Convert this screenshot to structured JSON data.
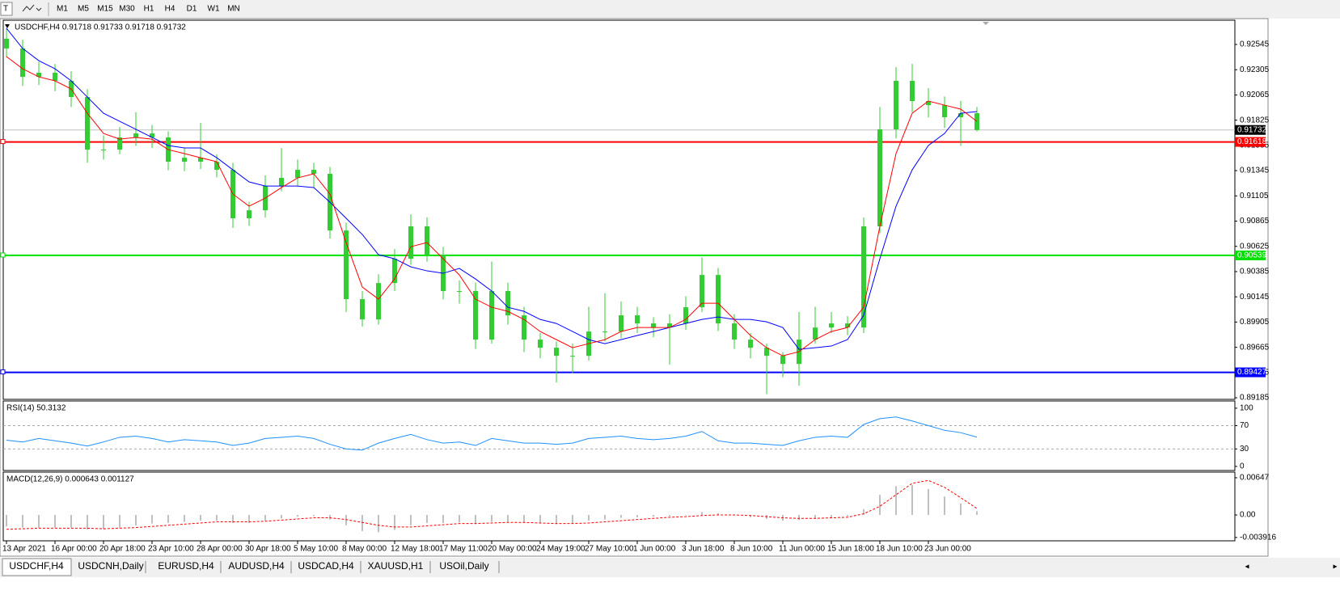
{
  "toolbar": {
    "timeframes": [
      "M1",
      "M5",
      "M15",
      "M30",
      "H1",
      "H4",
      "D1",
      "W1",
      "MN"
    ]
  },
  "tabs": [
    "USDCHF,H4",
    "USDCNH,Daily",
    "EURUSD,H4",
    "AUDUSD,H4",
    "USDCAD,H4",
    "XAUUSD,H1",
    "USOil,Daily"
  ],
  "chart_data": [
    {
      "type": "candlestick",
      "title": "USDCHF,H4  0.91718 0.91733 0.91718 0.91732",
      "candle_color": "#32cd32",
      "categories": [
        "13 Apr 2021",
        null,
        null,
        "16 Apr 00:00",
        null,
        null,
        "20 Apr 18:00",
        null,
        null,
        "23 Apr 10:00",
        null,
        null,
        "28 Apr 00:00",
        null,
        null,
        "30 Apr 18:00",
        null,
        null,
        "5 May 10:00",
        null,
        null,
        "8 May 00:00",
        null,
        null,
        "12 May 18:00",
        null,
        null,
        "17 May 11:00",
        null,
        null,
        "20 May 00:00",
        null,
        null,
        "24 May 19:00",
        null,
        null,
        "27 May 10:00",
        null,
        null,
        "1 Jun 00:00",
        null,
        null,
        "3 Jun 18:00",
        null,
        null,
        "8 Jun 10:00",
        null,
        null,
        "11 Jun 00:00",
        null,
        null,
        "15 Jun 18:00",
        null,
        null,
        "18 Jun 10:00",
        null,
        null,
        "23 Jun 00:00",
        null,
        null,
        null
      ],
      "open": [
        0.926,
        0.92507,
        0.92237,
        0.92276,
        0.92199,
        0.92045,
        0.91545,
        0.91545,
        0.91661,
        0.91699,
        0.91661,
        0.9143,
        0.91468,
        0.9143,
        0.91353,
        0.90892,
        0.90968,
        0.91199,
        0.91276,
        0.91353,
        0.91315,
        0.90776,
        0.90123,
        0.8993,
        0.90276,
        0.90507,
        0.90815,
        0.90546,
        0.902,
        0.902,
        0.89738,
        0.902,
        0.89969,
        0.89738,
        0.89661,
        0.89584,
        0.89584,
        0.89815,
        0.89815,
        0.89969,
        0.89892,
        0.89853,
        0.89892,
        0.90046,
        0.90353,
        0.89892,
        0.89738,
        0.89661,
        0.89584,
        0.89507,
        0.89738,
        0.89853,
        0.89892,
        0.89853,
        0.90815,
        0.91738,
        0.92199,
        0.92007,
        0.91968,
        0.91853,
        0.91891
      ],
      "high": [
        0.927,
        0.9259,
        0.9238,
        0.9236,
        0.9229,
        0.9212,
        0.9168,
        0.9176,
        0.919,
        0.9178,
        0.9172,
        0.9156,
        0.918,
        0.915,
        0.9142,
        0.9105,
        0.913,
        0.9156,
        0.9145,
        0.9142,
        0.9138,
        0.9085,
        0.902,
        0.9036,
        0.906,
        0.9093,
        0.909,
        0.9062,
        0.903,
        0.9028,
        0.9048,
        0.9028,
        0.9005,
        0.898,
        0.8972,
        0.897,
        0.9005,
        0.9018,
        0.901,
        0.9005,
        0.8995,
        0.8998,
        0.9015,
        0.9052,
        0.9042,
        0.8998,
        0.898,
        0.897,
        0.8962,
        0.9,
        0.9005,
        0.9,
        0.8996,
        0.909,
        0.9195,
        0.9233,
        0.9236,
        0.9213,
        0.9205,
        0.9201,
        0.9195
      ],
      "low": [
        0.9242,
        0.9215,
        0.9216,
        0.921,
        0.9195,
        0.9142,
        0.9145,
        0.915,
        0.9158,
        0.9156,
        0.9135,
        0.9134,
        0.9136,
        0.9128,
        0.908,
        0.9082,
        0.909,
        0.9115,
        0.912,
        0.9118,
        0.907,
        0.9,
        0.8986,
        0.8988,
        0.902,
        0.9045,
        0.9048,
        0.9012,
        0.9008,
        0.8965,
        0.897,
        0.8988,
        0.8962,
        0.8956,
        0.8933,
        0.8942,
        0.8954,
        0.8972,
        0.8975,
        0.898,
        0.8976,
        0.895,
        0.8983,
        0.9,
        0.8982,
        0.8965,
        0.8956,
        0.8922,
        0.8938,
        0.893,
        0.897,
        0.898,
        0.8978,
        0.898,
        0.9075,
        0.9165,
        0.919,
        0.9185,
        0.9175,
        0.9158,
        0.91718
      ],
      "close": [
        0.92507,
        0.92237,
        0.92276,
        0.92199,
        0.92045,
        0.91545,
        0.91545,
        0.91661,
        0.91699,
        0.91661,
        0.9143,
        0.91468,
        0.9143,
        0.91353,
        0.90892,
        0.90968,
        0.91199,
        0.91276,
        0.91353,
        0.91315,
        0.90776,
        0.90123,
        0.8993,
        0.90276,
        0.90507,
        0.90815,
        0.90546,
        0.902,
        0.902,
        0.89738,
        0.902,
        0.89969,
        0.89738,
        0.89661,
        0.89584,
        0.89584,
        0.89815,
        0.89815,
        0.89969,
        0.89892,
        0.89853,
        0.89892,
        0.90046,
        0.90353,
        0.89892,
        0.89738,
        0.89661,
        0.89584,
        0.89507,
        0.89738,
        0.89853,
        0.89892,
        0.89853,
        0.90815,
        0.91738,
        0.92199,
        0.92007,
        0.91968,
        0.91853,
        0.91891,
        0.91732
      ],
      "lines": [
        {
          "color": "#0000ff",
          "values": [
            0.92699,
            0.92507,
            0.92391,
            0.92314,
            0.92199,
            0.92045,
            0.91891,
            0.91814,
            0.91738,
            0.91661,
            0.91584,
            0.91561,
            0.91561,
            0.91468,
            0.91353,
            0.91238,
            0.91199,
            0.91199,
            0.91199,
            0.91184,
            0.91045,
            0.90892,
            0.90738,
            0.90546,
            0.90507,
            0.9043,
            0.90392,
            0.90369,
            0.90415,
            0.90315,
            0.902,
            0.90046,
            0.90007,
            0.8993,
            0.89892,
            0.89815,
            0.89738,
            0.897,
            0.89738,
            0.89777,
            0.89815,
            0.89853,
            0.89892,
            0.8993,
            0.89953,
            0.8993,
            0.8993,
            0.89907,
            0.89853,
            0.89646,
            0.89661,
            0.89677,
            0.89738,
            0.89969,
            0.90507,
            0.91007,
            0.91353,
            0.91584,
            0.91699,
            0.91891,
            0.91907
          ]
        },
        {
          "color": "#ff0000",
          "values": [
            0.9243,
            0.92314,
            0.92237,
            0.92199,
            0.92122,
            0.91891,
            0.91699,
            0.91645,
            0.91661,
            0.91645,
            0.91545,
            0.91507,
            0.91468,
            0.9143,
            0.91122,
            0.91007,
            0.91084,
            0.91184,
            0.91276,
            0.91315,
            0.91122,
            0.90661,
            0.90238,
            0.90123,
            0.90315,
            0.90622,
            0.90661,
            0.90507,
            0.90353,
            0.90123,
            0.90046,
            0.90007,
            0.8993,
            0.89815,
            0.89738,
            0.89661,
            0.897,
            0.89738,
            0.89815,
            0.89853,
            0.89853,
            0.89853,
            0.8993,
            0.90084,
            0.90084,
            0.8993,
            0.89777,
            0.89661,
            0.89584,
            0.89623,
            0.89738,
            0.89815,
            0.89853,
            0.90046,
            0.90815,
            0.91507,
            0.91891,
            0.92007,
            0.91968,
            0.9193,
            0.91814
          ]
        }
      ],
      "levels": [
        {
          "value": 0.91618,
          "color": "#ff0000"
        },
        {
          "value": 0.90539,
          "color": "#00e000"
        },
        {
          "value": 0.89427,
          "color": "#0000ff"
        }
      ],
      "current_price": 0.91732,
      "ylim": [
        0.8917,
        0.92768
      ],
      "yticks": [
        0.92545,
        0.92305,
        0.92065,
        0.91825,
        0.91585,
        0.91345,
        0.91105,
        0.90865,
        0.90625,
        0.90385,
        0.90145,
        0.89905,
        0.89665,
        0.89425,
        0.89185
      ]
    },
    {
      "type": "line",
      "title": "RSI(14) 50.3132",
      "color": "#1e90ff",
      "values": [
        45,
        42,
        48,
        44,
        40,
        35,
        42,
        50,
        52,
        48,
        42,
        46,
        44,
        42,
        36,
        40,
        48,
        50,
        52,
        48,
        38,
        30,
        28,
        40,
        48,
        55,
        46,
        40,
        42,
        36,
        48,
        44,
        40,
        40,
        38,
        40,
        48,
        50,
        52,
        48,
        46,
        48,
        52,
        60,
        44,
        40,
        40,
        38,
        36,
        44,
        50,
        52,
        50,
        72,
        82,
        85,
        78,
        70,
        62,
        58,
        50.3132
      ],
      "level_lines": [
        30,
        70
      ],
      "ylim": [
        -7,
        111
      ],
      "yticks": [
        100,
        70,
        30,
        0
      ]
    },
    {
      "type": "macd",
      "title": "MACD(12,26,9) 0.000643 0.001127",
      "bar_color": "#c0c0c0",
      "signal_color": "#ff0000",
      "values": [
        -0.002,
        -0.0022,
        -0.0023,
        -0.0022,
        -0.0022,
        -0.0025,
        -0.0025,
        -0.0022,
        -0.0018,
        -0.0015,
        -0.0014,
        -0.0012,
        -0.001,
        -0.001,
        -0.0014,
        -0.0014,
        -0.001,
        -0.0006,
        -0.0003,
        -0.0002,
        -0.0008,
        -0.0018,
        -0.0028,
        -0.003,
        -0.0026,
        -0.0018,
        -0.0014,
        -0.0014,
        -0.0013,
        -0.0016,
        -0.0012,
        -0.0012,
        -0.0014,
        -0.0015,
        -0.0016,
        -0.0015,
        -0.001,
        -0.0008,
        -0.0005,
        -0.0004,
        -0.0003,
        -0.0002,
        0,
        0.0005,
        0.0003,
        -0.0001,
        -0.0004,
        -0.0007,
        -0.001,
        -0.0009,
        -0.0006,
        -0.0004,
        -0.0002,
        0.001,
        0.0035,
        0.005,
        0.0052,
        0.0045,
        0.0032,
        0.002,
        0.000643
      ],
      "signal": [
        -0.0025,
        -0.0024,
        -0.0023,
        -0.0023,
        -0.0023,
        -0.0023,
        -0.0024,
        -0.0023,
        -0.0022,
        -0.002,
        -0.0018,
        -0.0016,
        -0.0014,
        -0.0012,
        -0.0012,
        -0.0012,
        -0.0011,
        -0.0009,
        -0.0007,
        -0.0005,
        -0.0005,
        -0.0008,
        -0.0013,
        -0.0018,
        -0.0021,
        -0.0021,
        -0.0019,
        -0.0017,
        -0.0015,
        -0.0015,
        -0.0014,
        -0.0013,
        -0.0013,
        -0.0014,
        -0.0015,
        -0.0015,
        -0.0014,
        -0.0012,
        -0.001,
        -0.0008,
        -0.0006,
        -0.0004,
        -0.0003,
        -0.0001,
        0,
        0,
        -0.0001,
        -0.0003,
        -0.0005,
        -0.0006,
        -0.0006,
        -0.0005,
        -0.0004,
        0.0002,
        0.0015,
        0.0035,
        0.0055,
        0.006,
        0.0048,
        0.003,
        0.001127
      ],
      "ylim": [
        -0.0045,
        0.00731
      ],
      "yticks": [
        0.00647,
        {
          "value": 0,
          "label": "0.00"
        },
        -0.003916
      ]
    }
  ]
}
